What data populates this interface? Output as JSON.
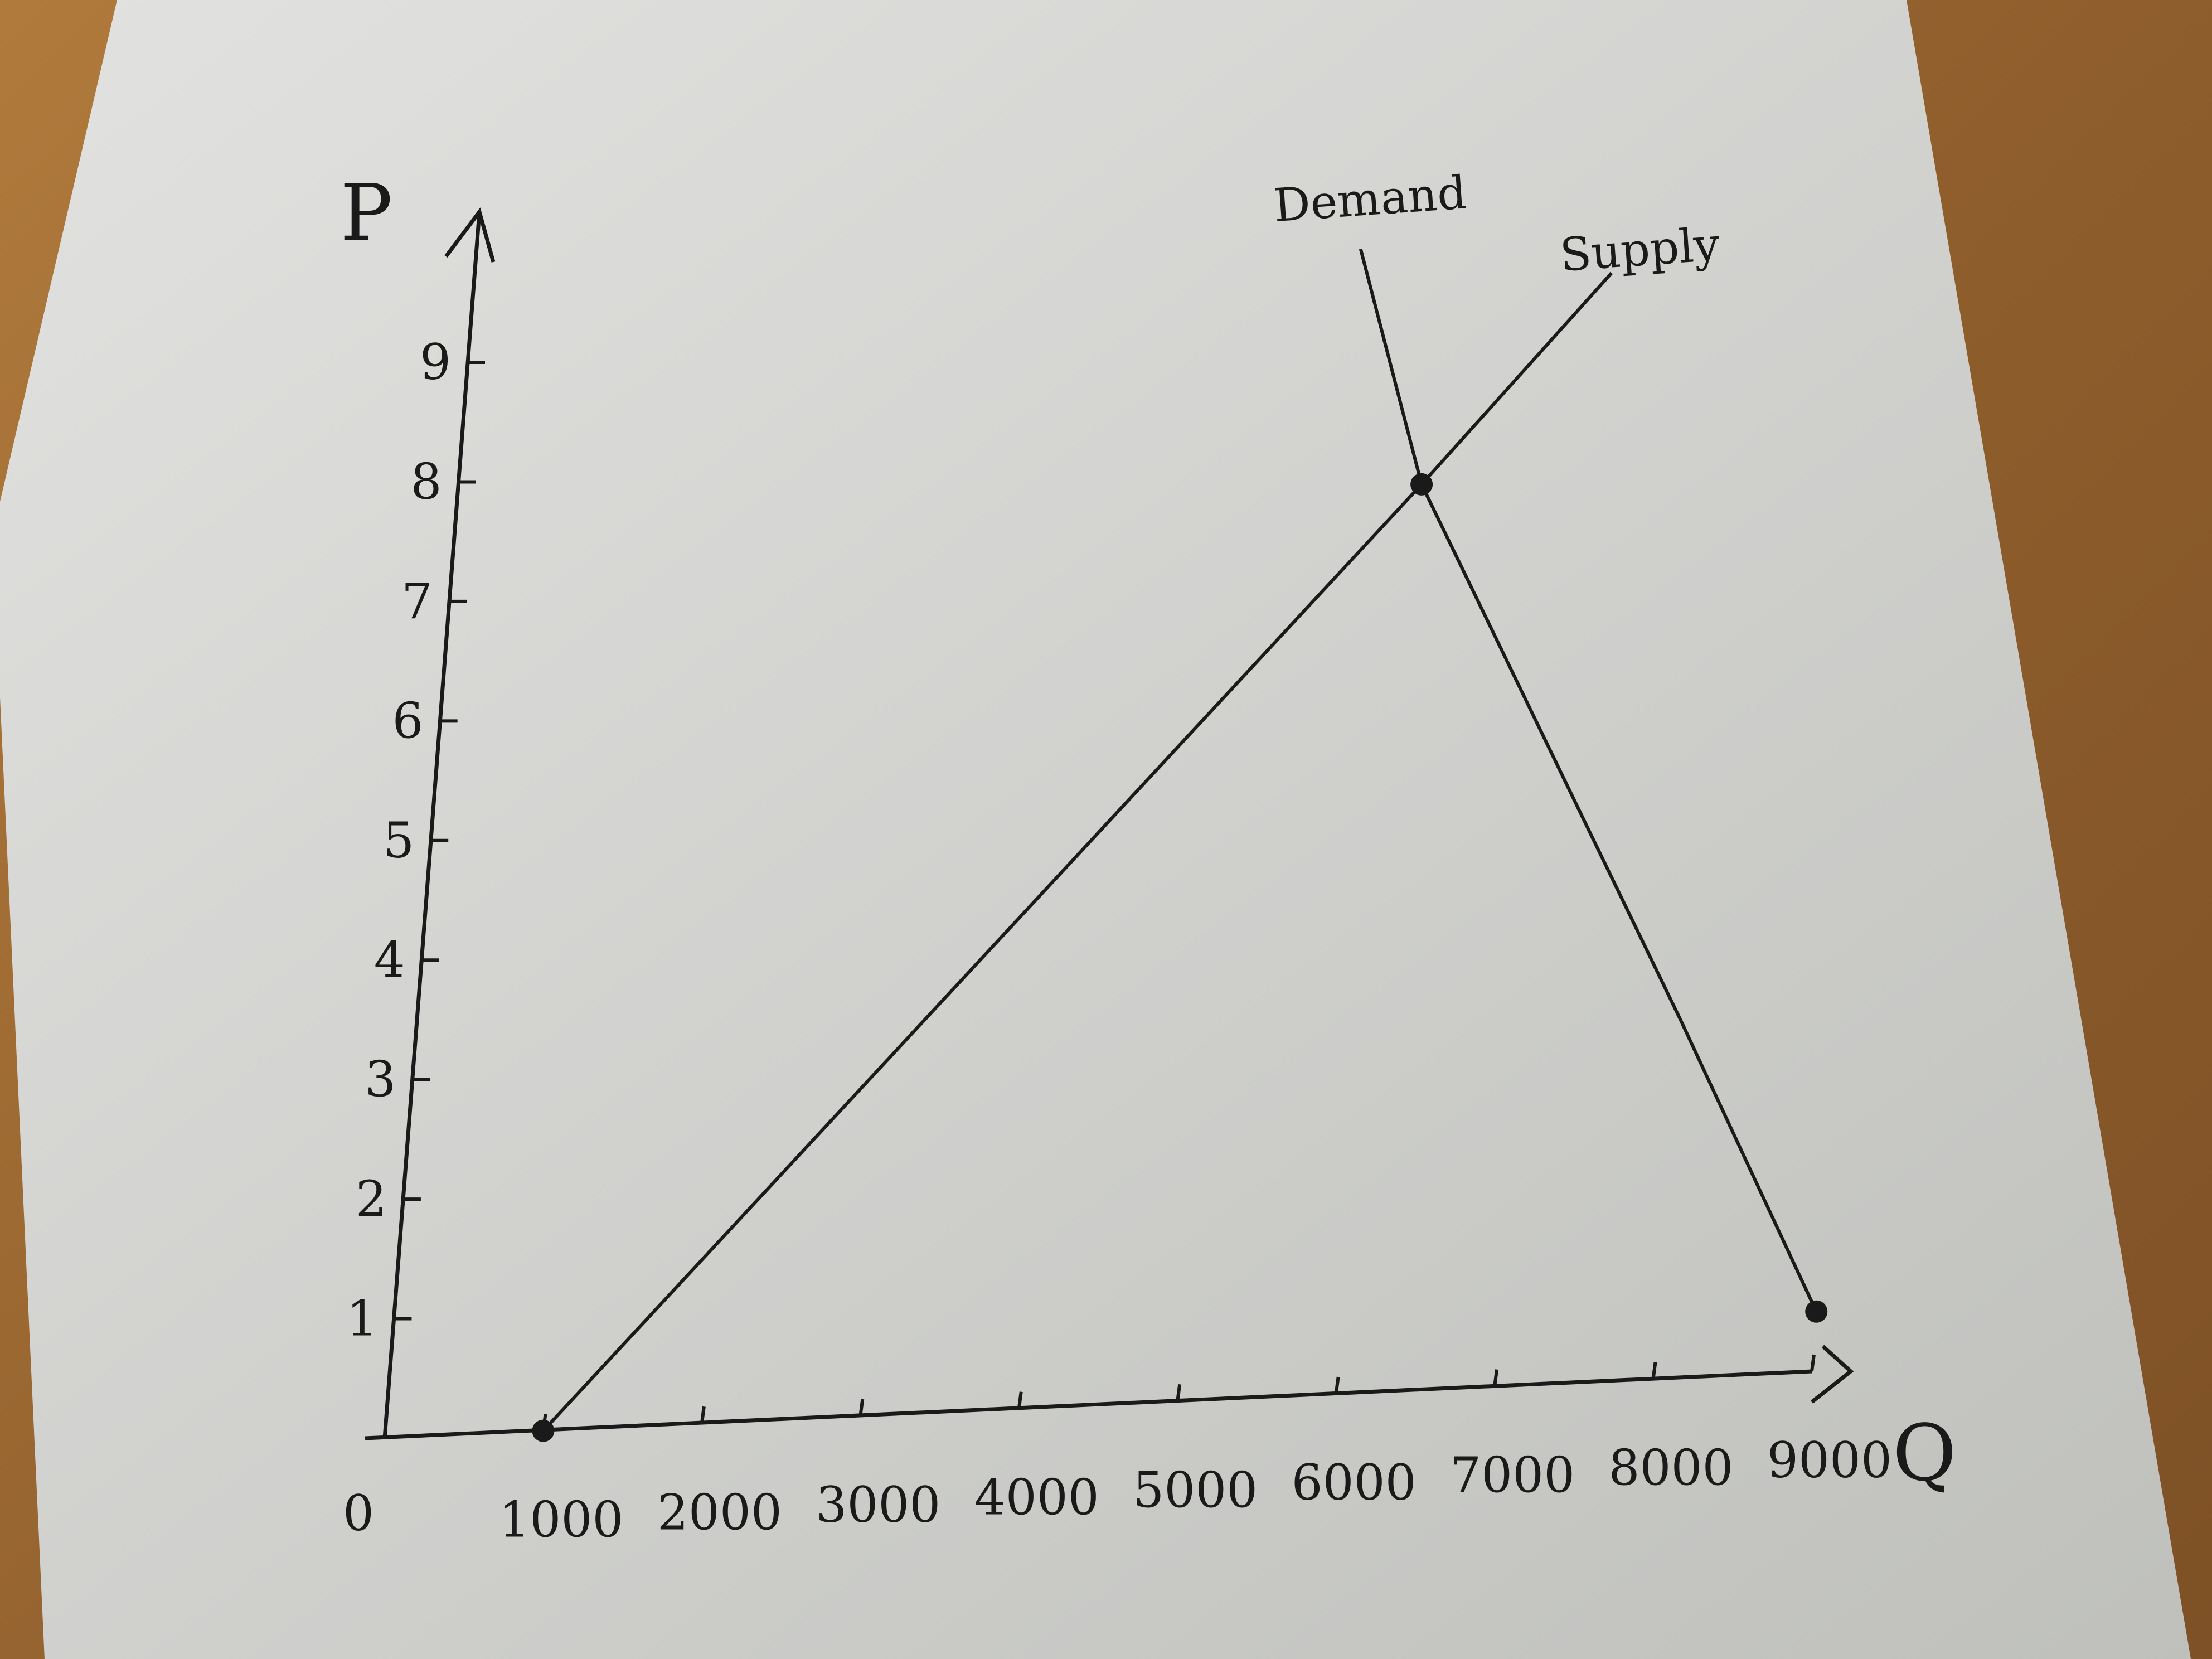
{
  "chart_data": {
    "type": "line",
    "title": "",
    "xlabel": "Q",
    "ylabel": "P",
    "origin_label": "0",
    "xlim": [
      0,
      9000
    ],
    "ylim": [
      0,
      9
    ],
    "x_ticks": [
      1000,
      2000,
      3000,
      4000,
      5000,
      6000,
      7000,
      8000,
      9000
    ],
    "x_tick_labels": [
      "1000",
      "2000",
      "3000",
      "4000",
      "5000",
      "6000",
      "7000",
      "8000",
      "9000"
    ],
    "y_ticks": [
      1,
      2,
      3,
      4,
      5,
      6,
      7,
      8,
      9
    ],
    "y_tick_labels": [
      "1",
      "2",
      "3",
      "4",
      "5",
      "6",
      "7",
      "8",
      "9"
    ],
    "grid": false,
    "series": [
      {
        "name": "Demand",
        "x": [
          5600,
          6100,
          8000,
          9000
        ],
        "y": [
          9.6,
          7.6,
          3.0,
          0.5
        ],
        "color": "#1a1a1a"
      },
      {
        "name": "Supply",
        "x": [
          1000,
          6100,
          7200
        ],
        "y": [
          0,
          7.6,
          9.3
        ],
        "color": "#1a1a1a"
      }
    ],
    "points": [
      {
        "x": 1000,
        "y": 0
      },
      {
        "x": 6100,
        "y": 7.6
      },
      {
        "x": 9000,
        "y": 0.5
      }
    ]
  }
}
